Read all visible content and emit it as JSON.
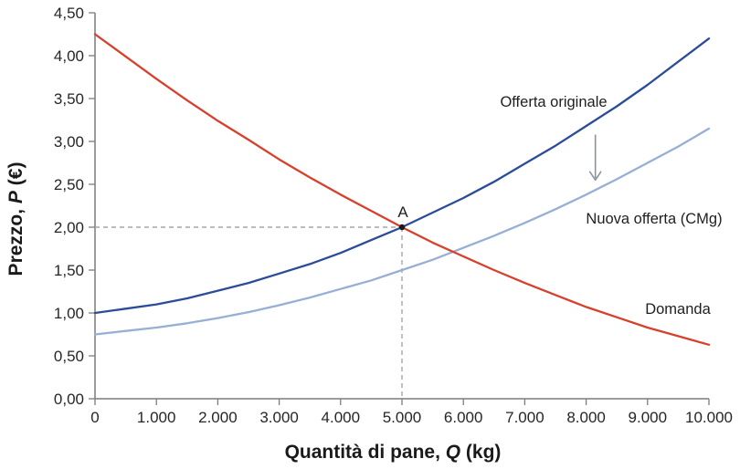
{
  "chart": {
    "y_axis": {
      "title_prefix": "Prezzo, ",
      "title_var": "P",
      "title_suffix": " (€)",
      "ticks": [
        {
          "v": 0.0,
          "label": "0,00"
        },
        {
          "v": 0.5,
          "label": "0,50"
        },
        {
          "v": 1.0,
          "label": "1,00"
        },
        {
          "v": 1.5,
          "label": "1,50"
        },
        {
          "v": 2.0,
          "label": "2,00"
        },
        {
          "v": 2.5,
          "label": "2,50"
        },
        {
          "v": 3.0,
          "label": "3,00"
        },
        {
          "v": 3.5,
          "label": "3,50"
        },
        {
          "v": 4.0,
          "label": "4,00"
        },
        {
          "v": 4.5,
          "label": "4,50"
        }
      ]
    },
    "x_axis": {
      "title_prefix": "Quantità di pane, ",
      "title_var": "Q",
      "title_suffix": " (kg)",
      "ticks": [
        {
          "v": 0,
          "label": "0"
        },
        {
          "v": 1000,
          "label": "1.000"
        },
        {
          "v": 2000,
          "label": "2.000"
        },
        {
          "v": 3000,
          "label": "3.000"
        },
        {
          "v": 4000,
          "label": "4.000"
        },
        {
          "v": 5000,
          "label": "5.000"
        },
        {
          "v": 6000,
          "label": "6.000"
        },
        {
          "v": 7000,
          "label": "7.000"
        },
        {
          "v": 8000,
          "label": "8.000"
        },
        {
          "v": 9000,
          "label": "9.000"
        },
        {
          "v": 10000,
          "label": "10.000"
        }
      ]
    },
    "labels": {
      "supply_original": "Offerta originale",
      "supply_new": "Nuova offerta (CMg)",
      "demand": "Domanda",
      "point_a": "A"
    },
    "colors": {
      "supply_original": "#2b4c99",
      "supply_new": "#98afd5",
      "demand": "#d7402b",
      "axis": "#7c7c7c",
      "dashed": "#a6a6a6",
      "arrow": "#8b949c",
      "point": "#1a1a1a"
    }
  },
  "chart_data": {
    "type": "line",
    "title": "",
    "xlabel": "Quantità di pane, Q (kg)",
    "ylabel": "Prezzo, P (€)",
    "xlim": [
      0,
      10000
    ],
    "ylim": [
      0,
      4.5
    ],
    "grid": false,
    "legend_position": "inline-labels",
    "x": [
      0,
      500,
      1000,
      1500,
      2000,
      2500,
      3000,
      3500,
      4000,
      4500,
      5000,
      5500,
      6000,
      6500,
      7000,
      7500,
      8000,
      8500,
      9000,
      9500,
      10000
    ],
    "series": [
      {
        "name": "Offerta originale",
        "color": "#2b4c99",
        "width": 2.3,
        "values": [
          1.0,
          1.05,
          1.1,
          1.17,
          1.26,
          1.35,
          1.46,
          1.57,
          1.7,
          1.85,
          2.0,
          2.17,
          2.34,
          2.53,
          2.74,
          2.95,
          3.18,
          3.41,
          3.66,
          3.93,
          4.2
        ]
      },
      {
        "name": "Nuova offerta (CMg)",
        "color": "#98afd5",
        "width": 2.3,
        "values": [
          0.75,
          0.79,
          0.83,
          0.88,
          0.94,
          1.01,
          1.09,
          1.18,
          1.28,
          1.38,
          1.5,
          1.62,
          1.76,
          1.9,
          2.05,
          2.21,
          2.38,
          2.56,
          2.75,
          2.94,
          3.15
        ]
      },
      {
        "name": "Domanda",
        "color": "#d7402b",
        "width": 2.3,
        "values": [
          4.25,
          3.99,
          3.73,
          3.48,
          3.24,
          3.02,
          2.79,
          2.58,
          2.38,
          2.19,
          2.0,
          1.82,
          1.66,
          1.5,
          1.35,
          1.21,
          1.07,
          0.95,
          0.83,
          0.73,
          0.63
        ]
      }
    ],
    "equilibrium": {
      "label": "A",
      "q": 5000,
      "p": 2.0
    },
    "shift_arrow": {
      "q": 8150,
      "from_p": 3.08,
      "to_p": 2.55
    },
    "annotations": [
      "Arrow indicates downward shift from original supply curve to new supply (marginal cost) curve"
    ]
  }
}
